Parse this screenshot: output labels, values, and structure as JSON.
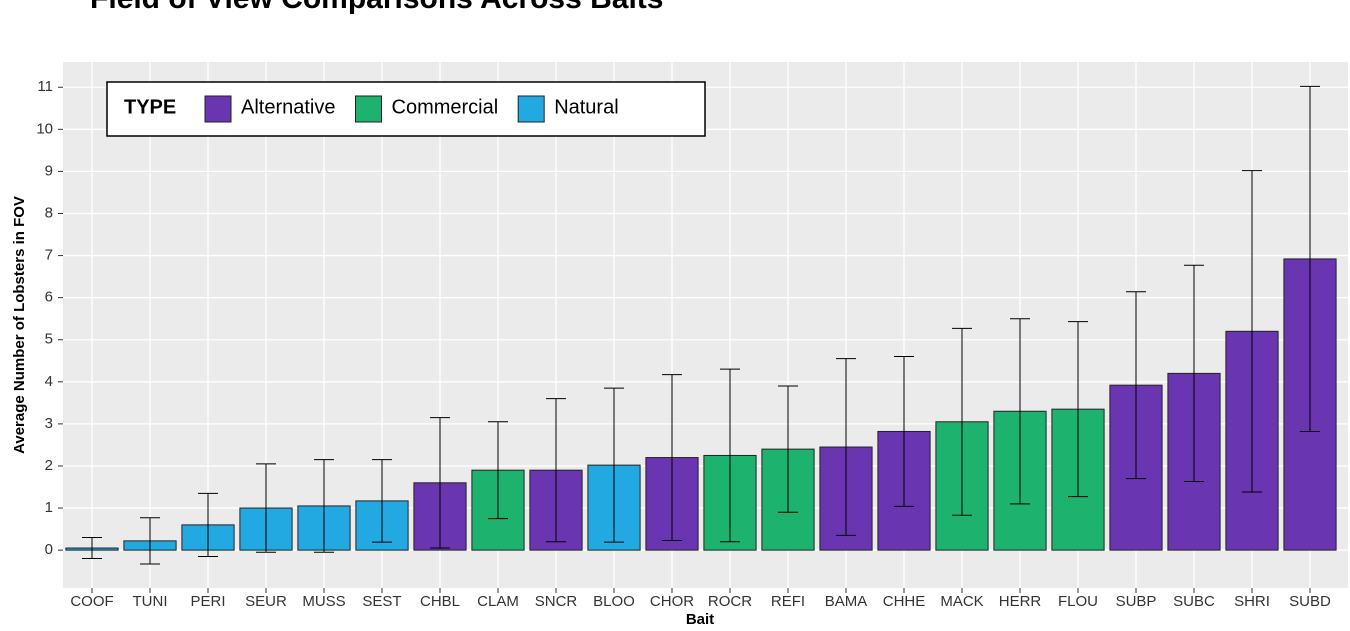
{
  "chart_data": {
    "type": "bar",
    "title": "Field of View Comparisons Across Baits",
    "x_label": "Bait",
    "y_label": "Average Number of Lobsters in FOV",
    "legend_title": "TYPE",
    "categories": [
      "COOF",
      "TUNI",
      "PERI",
      "SEUR",
      "MUSS",
      "SEST",
      "CHBL",
      "CLAM",
      "SNCR",
      "BLOO",
      "CHOR",
      "ROCR",
      "REFI",
      "BAMA",
      "CHHE",
      "MACK",
      "HERR",
      "FLOU",
      "SUBP",
      "SUBC",
      "SHRI",
      "SUBD"
    ],
    "series": [
      {
        "name": "Alternative",
        "color": "#6a35b0",
        "values": [
          null,
          null,
          null,
          null,
          null,
          null,
          1.6,
          null,
          1.9,
          null,
          2.2,
          null,
          null,
          2.45,
          2.82,
          null,
          null,
          null,
          3.92,
          4.2,
          5.2,
          6.92
        ],
        "errors": [
          null,
          null,
          null,
          null,
          null,
          null,
          1.55,
          null,
          1.7,
          null,
          1.97,
          null,
          null,
          2.1,
          1.78,
          null,
          null,
          null,
          2.22,
          2.57,
          3.82,
          4.1
        ]
      },
      {
        "name": "Commercial",
        "color": "#1db36e",
        "values": [
          null,
          null,
          null,
          null,
          null,
          null,
          null,
          1.9,
          null,
          null,
          null,
          2.25,
          2.4,
          null,
          null,
          3.05,
          3.3,
          3.35,
          null,
          null,
          null,
          null
        ],
        "errors": [
          null,
          null,
          null,
          null,
          null,
          null,
          null,
          1.15,
          null,
          null,
          null,
          2.05,
          1.5,
          null,
          null,
          2.22,
          2.2,
          2.08,
          null,
          null,
          null,
          null
        ]
      },
      {
        "name": "Natural",
        "color": "#23a9e1",
        "values": [
          0.05,
          0.22,
          0.6,
          1.0,
          1.05,
          1.17,
          null,
          null,
          null,
          2.02,
          null,
          null,
          null,
          null,
          null,
          null,
          null,
          null,
          null,
          null,
          null,
          null
        ],
        "errors": [
          0.25,
          0.55,
          0.75,
          1.05,
          1.1,
          0.98,
          null,
          null,
          null,
          1.83,
          null,
          null,
          null,
          null,
          null,
          null,
          null,
          null,
          null,
          null,
          null,
          null
        ]
      }
    ],
    "ylim": [
      -0.9,
      11.6
    ],
    "yticks": [
      0,
      1,
      2,
      3,
      4,
      5,
      6,
      7,
      8,
      9,
      10,
      11
    ],
    "grid": true
  }
}
